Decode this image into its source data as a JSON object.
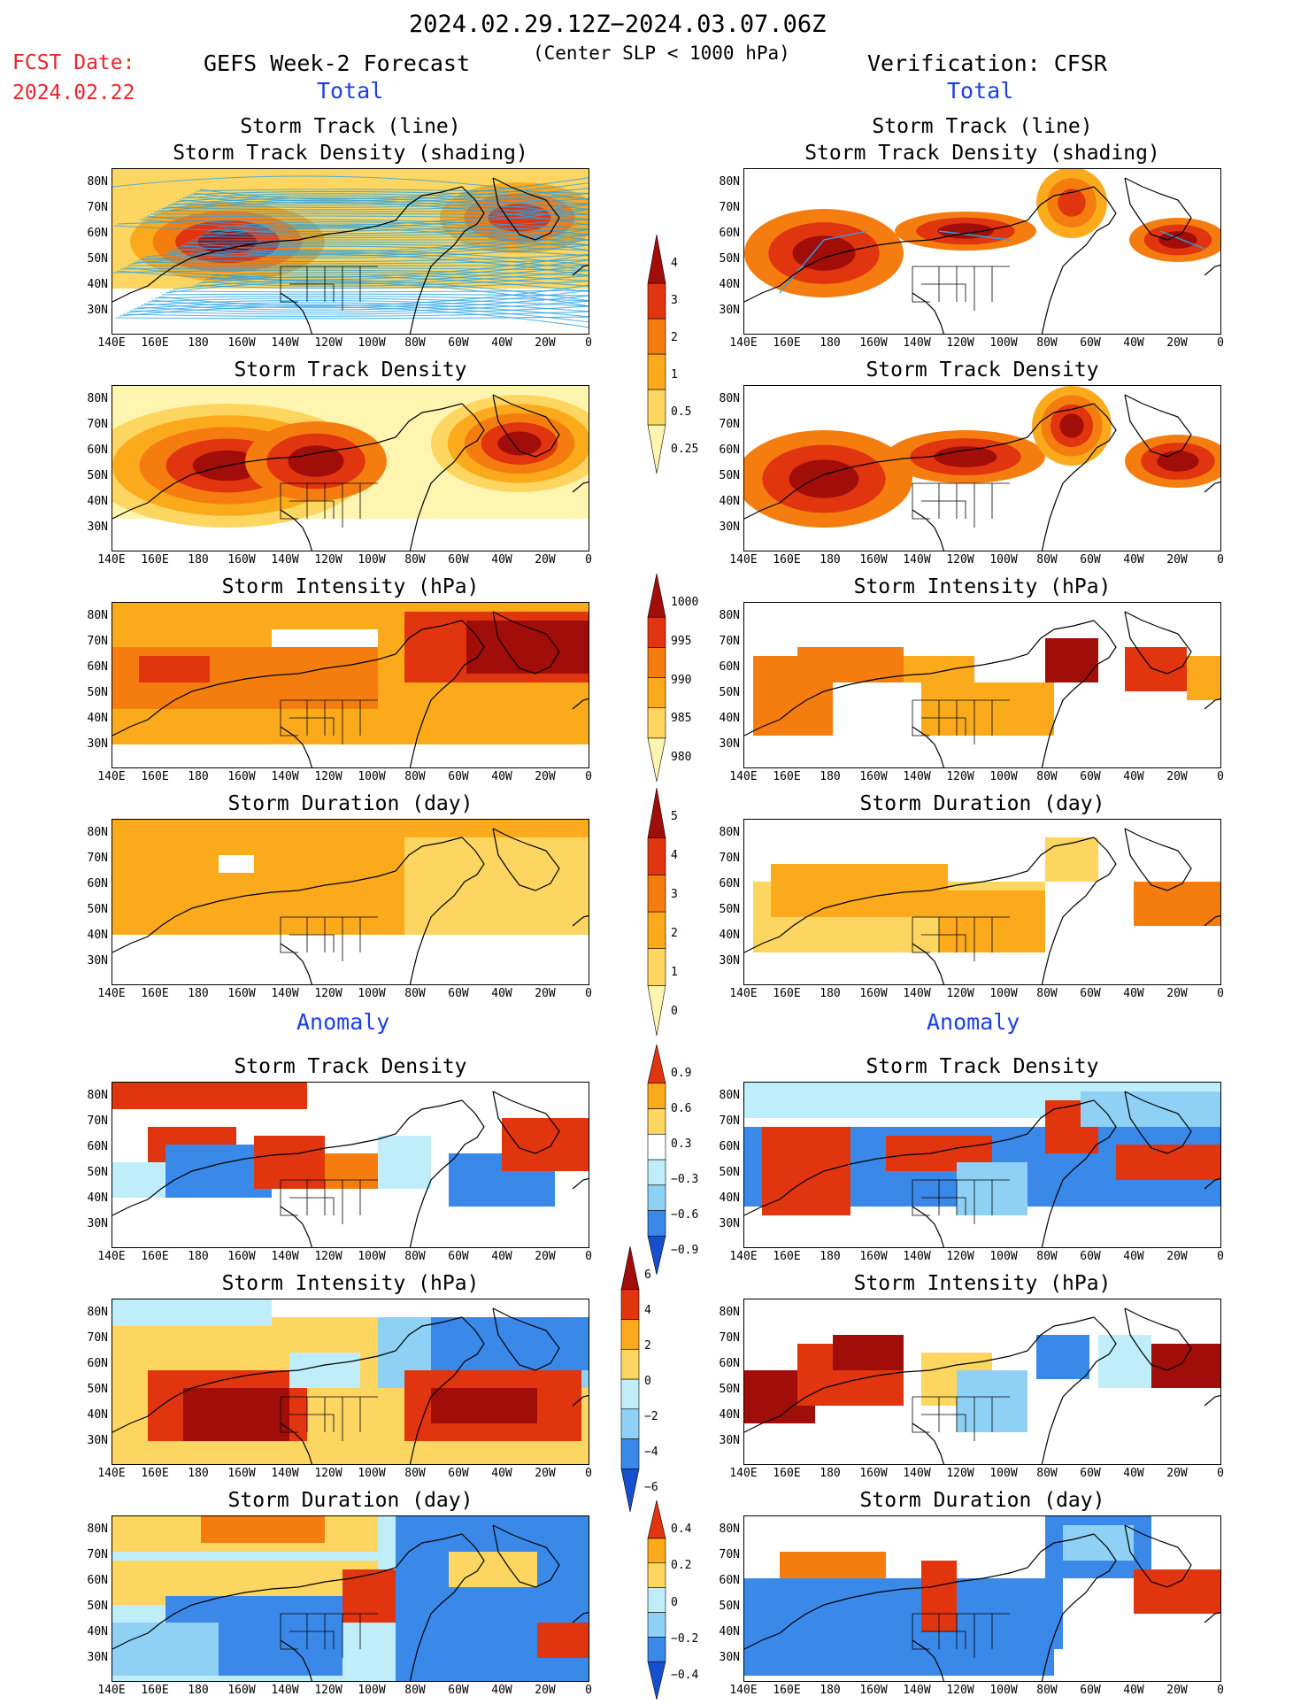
{
  "header": {
    "period": "2024.02.29.12Z−2024.03.07.06Z",
    "criterion": "(Center SLP < 1000 hPa)",
    "fcst_label": "FCST Date:",
    "fcst_date": "2024.02.22",
    "left_title": "GEFS Week-2 Forecast",
    "right_title": "Verification: CFSR",
    "total_label": "Total",
    "anomaly_label": "Anomaly"
  },
  "panel_titles": {
    "track_1": "Storm Track (line)",
    "track_2": "Storm Track Density (shading)",
    "density": "Storm Track Density",
    "intensity": "Storm Intensity (hPa)",
    "duration": "Storm Duration (day)"
  },
  "axes": {
    "lat_ticks": [
      "80N",
      "70N",
      "60N",
      "50N",
      "40N",
      "30N"
    ],
    "lon_ticks": [
      "140E",
      "160E",
      "180",
      "160W",
      "140W",
      "120W",
      "100W",
      "80W",
      "60W",
      "40W",
      "20W",
      "0"
    ]
  },
  "colorbars": {
    "density_total": [
      "4",
      "3",
      "2",
      "1",
      "0.5",
      "0.25"
    ],
    "intensity_total": [
      "1000",
      "995",
      "990",
      "985",
      "980"
    ],
    "duration_total": [
      "5",
      "4",
      "3",
      "2",
      "1",
      "0"
    ],
    "density_anom": [
      "0.9",
      "0.6",
      "0.3",
      "−0.3",
      "−0.6",
      "−0.9"
    ],
    "intensity_anom": [
      "6",
      "4",
      "2",
      "0",
      "−2",
      "−4",
      "−6"
    ],
    "duration_anom": [
      "0.4",
      "0.2",
      "0",
      "−0.2",
      "−0.4"
    ]
  },
  "colors": {
    "warm": [
      "#fff5b0",
      "#fcd660",
      "#fbaa1c",
      "#f57d10",
      "#e0350e",
      "#a10d09"
    ],
    "cool": [
      "#bfeefa",
      "#8fd1f4",
      "#3a88e8",
      "#1650cf"
    ],
    "track_line": "#2aa4e6",
    "title_blue": "#1c3fe8",
    "fcst_red": "#e8262a"
  }
}
